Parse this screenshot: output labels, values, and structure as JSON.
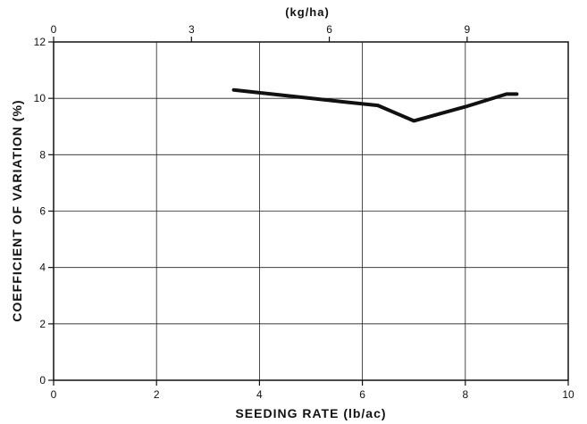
{
  "chart_data": {
    "type": "line",
    "xlabel": "SEEDING RATE (lb/ac)",
    "ylabel": "COEFFICIENT OF VARIATION (%)",
    "x2label": "(kg/ha)",
    "xlim": [
      0,
      10
    ],
    "ylim": [
      0,
      12
    ],
    "x2lim": [
      0,
      11.2
    ],
    "xticks": [
      0,
      2,
      4,
      6,
      8,
      10
    ],
    "yticks": [
      0,
      2,
      4,
      6,
      8,
      10,
      12
    ],
    "x2ticks": [
      0,
      3,
      6,
      9
    ],
    "grid": true,
    "series": [
      {
        "x": [
          3.5,
          4.5,
          5.5,
          6.3,
          7.0,
          8.0,
          8.8,
          9.0
        ],
        "y": [
          10.3,
          10.1,
          9.9,
          9.75,
          9.2,
          9.7,
          10.15,
          10.15
        ]
      }
    ],
    "colors": {
      "line": "#111111",
      "grid": "#222222",
      "axis": "#111111"
    }
  }
}
